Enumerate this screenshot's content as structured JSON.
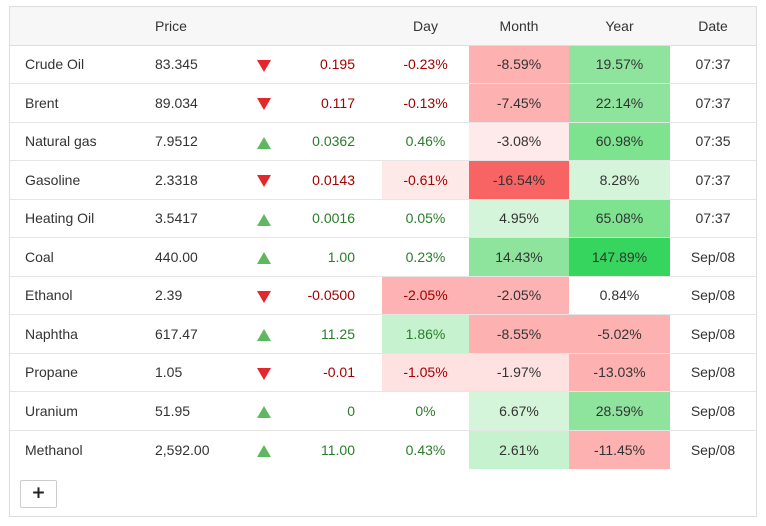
{
  "headers": {
    "name": "",
    "price": "Price",
    "arrow": "",
    "change": "",
    "day": "Day",
    "month": "Month",
    "year": "Year",
    "date": "Date"
  },
  "rows": [
    {
      "name": "Crude Oil",
      "price": "83.345",
      "direction": "down",
      "change": "0.195",
      "day": "-0.23%",
      "month": "-8.59%",
      "year": "19.57%",
      "date": "07:37"
    },
    {
      "name": "Brent",
      "price": "89.034",
      "direction": "down",
      "change": "0.117",
      "day": "-0.13%",
      "month": "-7.45%",
      "year": "22.14%",
      "date": "07:37"
    },
    {
      "name": "Natural gas",
      "price": "7.9512",
      "direction": "up",
      "change": "0.0362",
      "day": "0.46%",
      "month": "-3.08%",
      "year": "60.98%",
      "date": "07:35"
    },
    {
      "name": "Gasoline",
      "price": "2.3318",
      "direction": "down",
      "change": "0.0143",
      "day": "-0.61%",
      "month": "-16.54%",
      "year": "8.28%",
      "date": "07:37"
    },
    {
      "name": "Heating Oil",
      "price": "3.5417",
      "direction": "up",
      "change": "0.0016",
      "day": "0.05%",
      "month": "4.95%",
      "year": "65.08%",
      "date": "07:37"
    },
    {
      "name": "Coal",
      "price": "440.00",
      "direction": "up",
      "change": "1.00",
      "day": "0.23%",
      "month": "14.43%",
      "year": "147.89%",
      "date": "Sep/08"
    },
    {
      "name": "Ethanol",
      "price": "2.39",
      "direction": "down",
      "change": "-0.0500",
      "day": "-2.05%",
      "month": "-2.05%",
      "year": "0.84%",
      "date": "Sep/08"
    },
    {
      "name": "Naphtha",
      "price": "617.47",
      "direction": "up",
      "change": "11.25",
      "day": "1.86%",
      "month": "-8.55%",
      "year": "-5.02%",
      "date": "Sep/08"
    },
    {
      "name": "Propane",
      "price": "1.05",
      "direction": "down",
      "change": "-0.01",
      "day": "-1.05%",
      "month": "-1.97%",
      "year": "-13.03%",
      "date": "Sep/08"
    },
    {
      "name": "Uranium",
      "price": "51.95",
      "direction": "up",
      "change": "0",
      "day": "0%",
      "month": "6.67%",
      "year": "28.59%",
      "date": "Sep/08"
    },
    {
      "name": "Methanol",
      "price": "2,592.00",
      "direction": "up",
      "change": "11.00",
      "day": "0.43%",
      "month": "2.61%",
      "year": "-11.45%",
      "date": "Sep/08"
    }
  ],
  "add_button_label": "+",
  "colors": {
    "text_up": "#2a7d2a",
    "text_down": "#a50000",
    "arrow_up": "#5fb85f",
    "arrow_down": "#e3272c"
  }
}
